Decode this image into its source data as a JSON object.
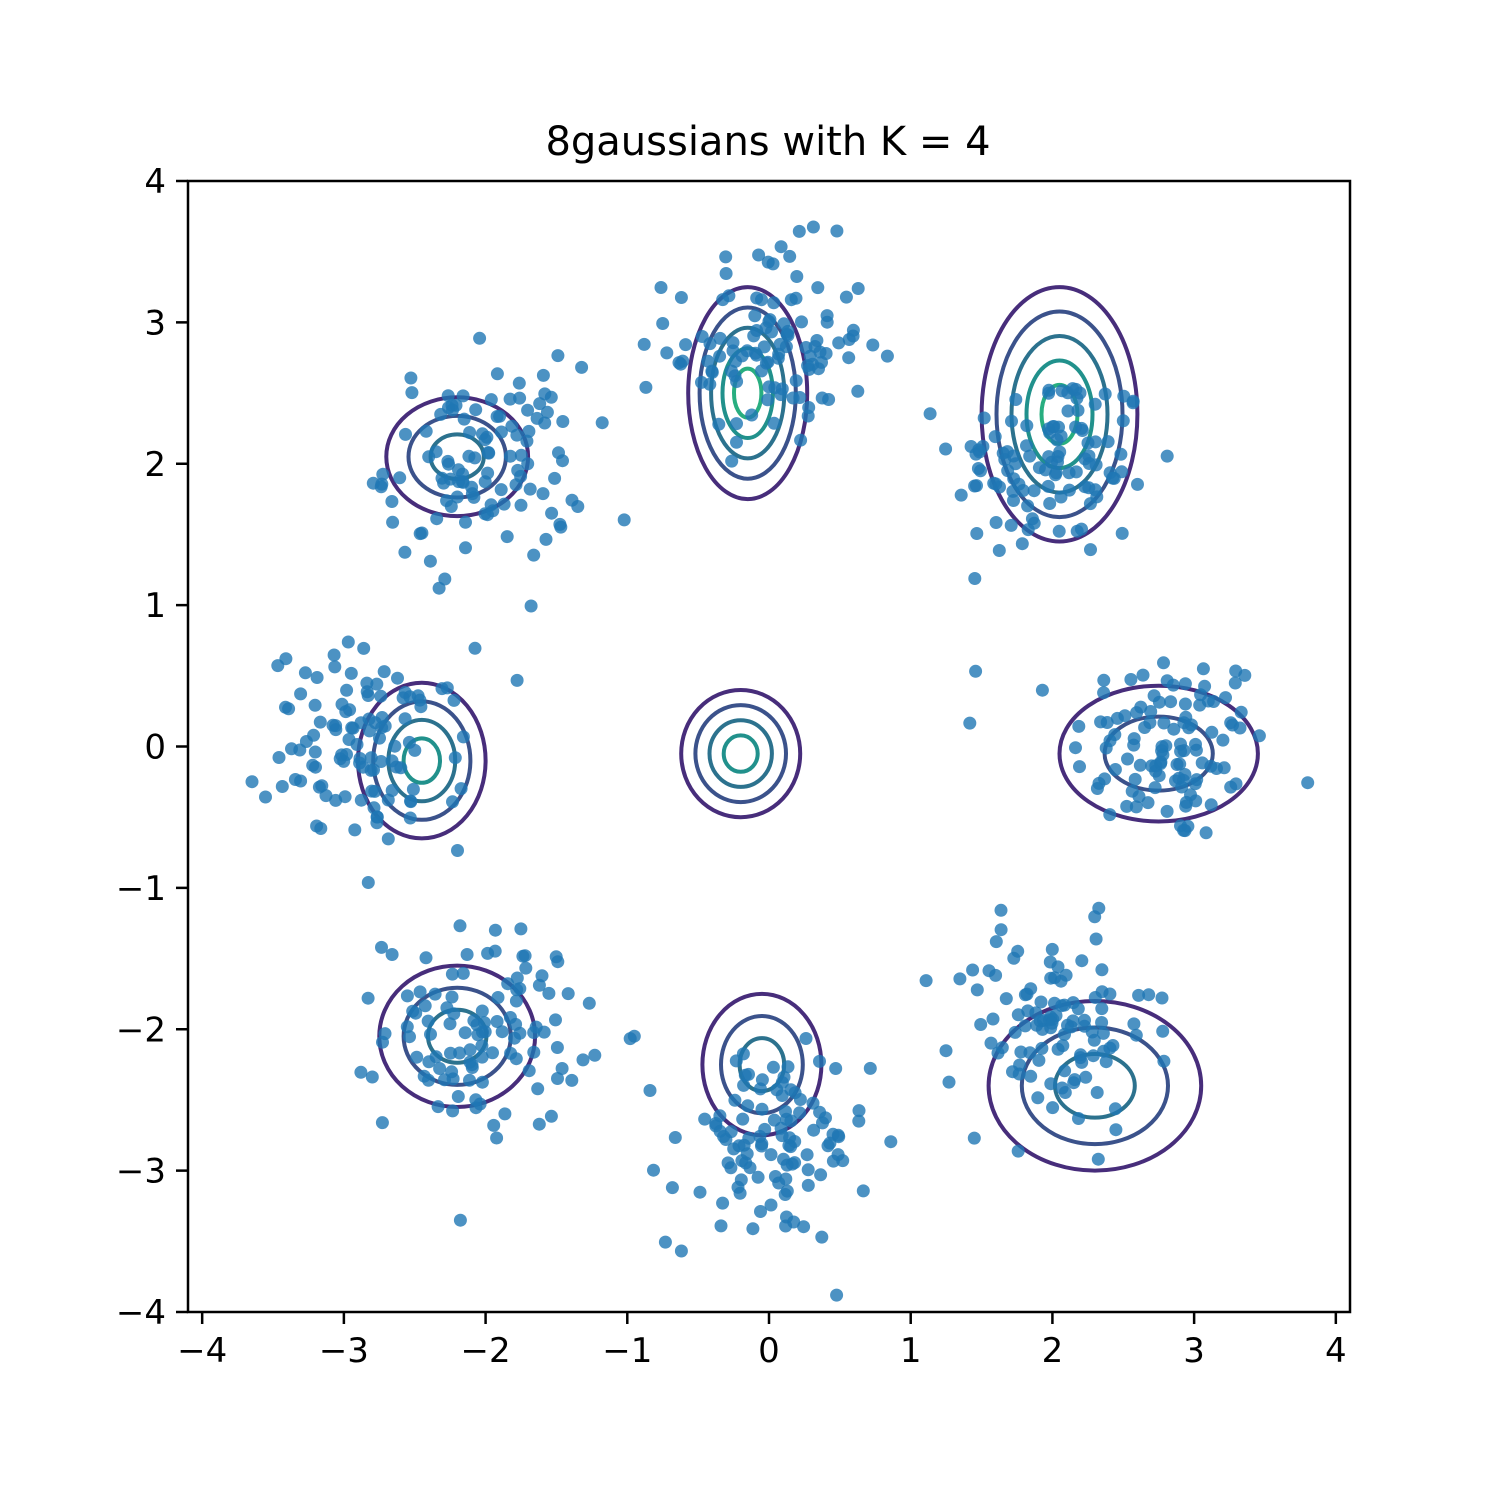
{
  "chart_data": {
    "type": "scatter",
    "title": "8gaussians with K = 4",
    "xlabel": "",
    "ylabel": "",
    "xlim": [
      -4.1,
      4.1
    ],
    "ylim": [
      -4.0,
      4.0
    ],
    "xticks": [
      -4,
      -3,
      -2,
      -1,
      0,
      1,
      2,
      3,
      4
    ],
    "yticks": [
      -4,
      -3,
      -2,
      -1,
      0,
      1,
      2,
      3,
      4
    ],
    "xtick_labels": [
      "−4",
      "−3",
      "−2",
      "−1",
      "0",
      "1",
      "2",
      "3",
      "4"
    ],
    "ytick_labels": [
      "−4",
      "−3",
      "−2",
      "−1",
      "0",
      "1",
      "2",
      "3",
      "4"
    ],
    "grid": false,
    "point_color": "#1f77b4",
    "cluster_centers": [
      {
        "x": 2.83,
        "y": 0.0
      },
      {
        "x": 2.0,
        "y": 2.0
      },
      {
        "x": 0.0,
        "y": 2.83
      },
      {
        "x": -2.0,
        "y": 2.0
      },
      {
        "x": -2.83,
        "y": 0.0
      },
      {
        "x": -2.0,
        "y": -2.0
      },
      {
        "x": 0.0,
        "y": -2.83
      },
      {
        "x": 2.0,
        "y": -2.0
      }
    ],
    "cluster_std": 0.35,
    "points_per_cluster": 110,
    "contours": [
      {
        "cx": -2.2,
        "cy": 2.05,
        "sx": 0.5,
        "sy": 0.42,
        "levels": 3
      },
      {
        "cx": -0.15,
        "cy": 2.5,
        "sx": 0.42,
        "sy": 0.75,
        "levels": 5
      },
      {
        "cx": 2.05,
        "cy": 2.35,
        "sx": 0.55,
        "sy": 0.9,
        "levels": 5
      },
      {
        "cx": -2.45,
        "cy": -0.1,
        "sx": 0.45,
        "sy": 0.55,
        "levels": 4
      },
      {
        "cx": -0.2,
        "cy": -0.05,
        "sx": 0.42,
        "sy": 0.45,
        "levels": 4
      },
      {
        "cx": 2.75,
        "cy": -0.05,
        "sx": 0.7,
        "sy": 0.48,
        "levels": 2
      },
      {
        "cx": -2.2,
        "cy": -2.05,
        "sx": 0.55,
        "sy": 0.5,
        "levels": 3
      },
      {
        "cx": -0.05,
        "cy": -2.25,
        "sx": 0.42,
        "sy": 0.5,
        "levels": 3
      },
      {
        "cx": 2.3,
        "cy": -2.4,
        "sx": 0.75,
        "sy": 0.6,
        "levels": 3
      }
    ],
    "contour_colors": [
      "#472d7b",
      "#3b528b",
      "#2c728e",
      "#21918c",
      "#28ae80"
    ]
  }
}
